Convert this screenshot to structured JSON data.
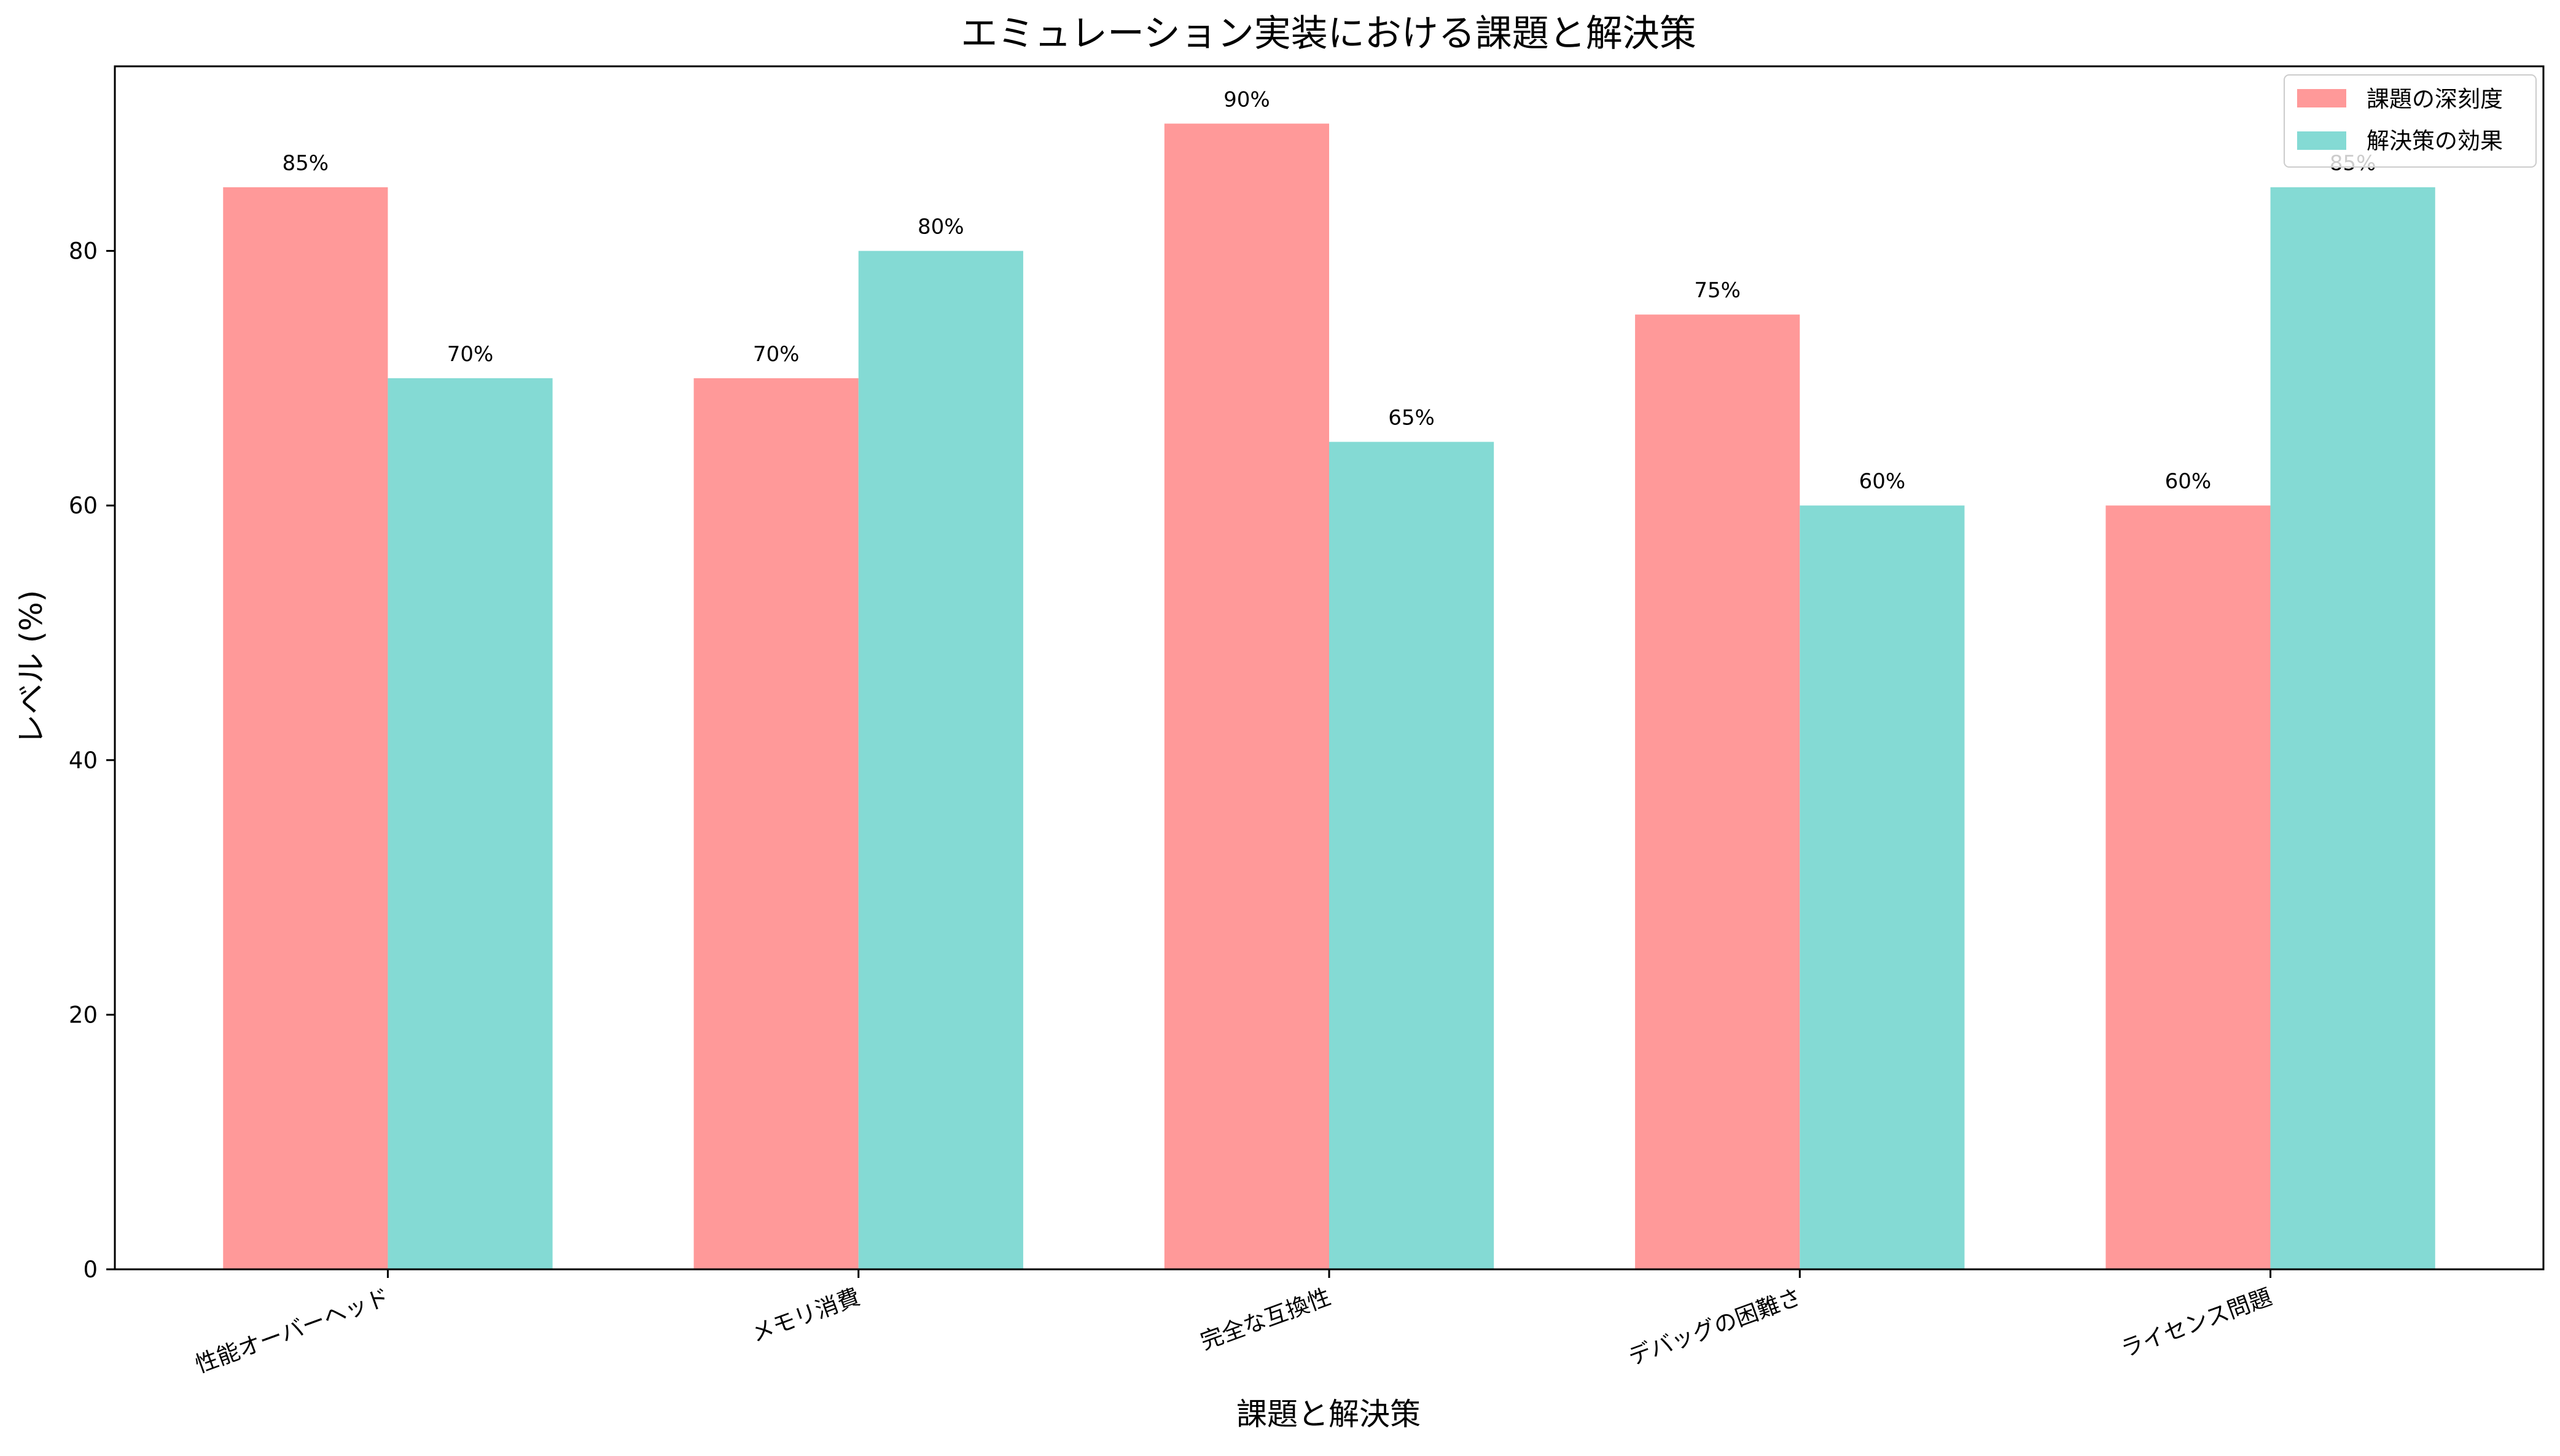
{
  "chart_data": {
    "type": "bar",
    "title": "エミュレーション実装における課題と解決策",
    "xlabel": "課題と解決策",
    "ylabel": "レベル (%)",
    "categories": [
      "性能オーバーヘッド",
      "メモリ消費",
      "完全な互換性",
      "デバッグの困難さ",
      "ライセンス問題"
    ],
    "series": [
      {
        "name": "課題の深刻度",
        "color": "#FF9999",
        "values": [
          85,
          70,
          90,
          75,
          60
        ]
      },
      {
        "name": "解決策の効果",
        "color": "#84DAD4",
        "values": [
          70,
          80,
          65,
          60,
          85
        ]
      }
    ],
    "value_suffix": "%",
    "ylim": [
      0,
      94.5
    ],
    "yticks": [
      0,
      20,
      40,
      60,
      80
    ],
    "grid": false,
    "legend_position": "top-right"
  }
}
